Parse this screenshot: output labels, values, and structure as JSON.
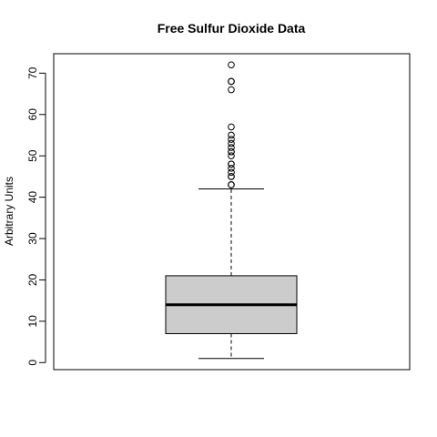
{
  "chart_data": {
    "type": "boxplot",
    "title": "Free Sulfur Dioxide Data",
    "xlabel": "",
    "ylabel": "Arbitrary Units",
    "ylim": [
      -1.7,
      74.7
    ],
    "y_ticks": [
      "0",
      "10",
      "20",
      "30",
      "40",
      "50",
      "60",
      "70"
    ],
    "box": {
      "whisker_low": 1,
      "q1": 7,
      "median": 14,
      "q3": 21,
      "whisker_high": 42
    },
    "outliers": [
      43,
      43,
      45,
      45,
      46,
      47,
      48,
      48,
      50,
      51,
      51,
      52,
      53,
      54,
      55,
      57,
      66,
      68,
      68,
      72
    ],
    "colors": {
      "box_fill": "#cccccc",
      "stroke": "#000000"
    },
    "grid": false,
    "legend": "none"
  }
}
